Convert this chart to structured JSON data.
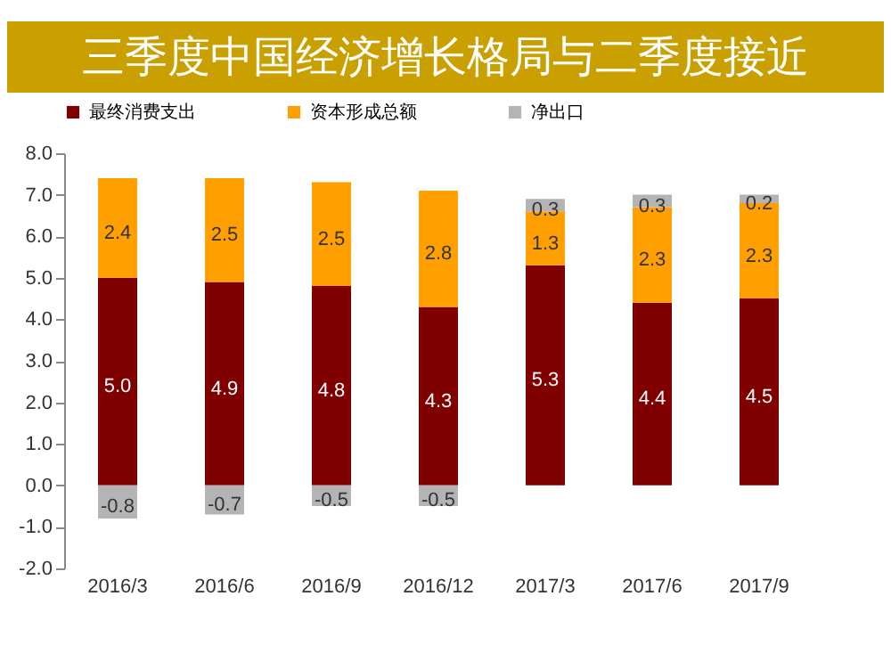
{
  "chart_data": {
    "type": "bar",
    "stacked": true,
    "title": "三季度中国经济增长格局与二季度接近",
    "categories": [
      "2016/3",
      "2016/6",
      "2016/9",
      "2016/12",
      "2017/3",
      "2017/6",
      "2017/9"
    ],
    "series": [
      {
        "name": "最终消费支出",
        "color": "#800000",
        "values": [
          5.0,
          4.9,
          4.8,
          4.3,
          5.3,
          4.4,
          4.5
        ],
        "value_labels": [
          "5.0",
          "4.9",
          "4.8",
          "4.3",
          "5.3",
          "4.4",
          "4.5"
        ]
      },
      {
        "name": "资本形成总额",
        "color": "#ffa000",
        "values": [
          2.4,
          2.5,
          2.5,
          2.8,
          1.3,
          2.3,
          2.3
        ],
        "value_labels": [
          "2.4",
          "2.5",
          "2.5",
          "2.8",
          "1.3",
          "2.3",
          "2.3"
        ]
      },
      {
        "name": "净出口",
        "color": "#b4b4b4",
        "values": [
          -0.8,
          -0.7,
          -0.5,
          -0.5,
          0.3,
          0.3,
          0.2
        ],
        "value_labels": [
          "-0.8",
          "-0.7",
          "-0.5",
          "-0.5",
          "0.3",
          "0.3",
          "0.2"
        ]
      }
    ],
    "ylim": [
      -2.0,
      8.0
    ],
    "yticks": [
      {
        "value": -2,
        "label": "-2.0"
      },
      {
        "value": -1,
        "label": "-1.0"
      },
      {
        "value": 0,
        "label": "0.0"
      },
      {
        "value": 1,
        "label": "1.0"
      },
      {
        "value": 2,
        "label": "2.0"
      },
      {
        "value": 3,
        "label": "3.0"
      },
      {
        "value": 4,
        "label": "4.0"
      },
      {
        "value": 5,
        "label": "5.0"
      },
      {
        "value": 6,
        "label": "6.0"
      },
      {
        "value": 7,
        "label": "7.0"
      },
      {
        "value": 8,
        "label": "8.0"
      }
    ],
    "grid": false,
    "legend": "top"
  }
}
